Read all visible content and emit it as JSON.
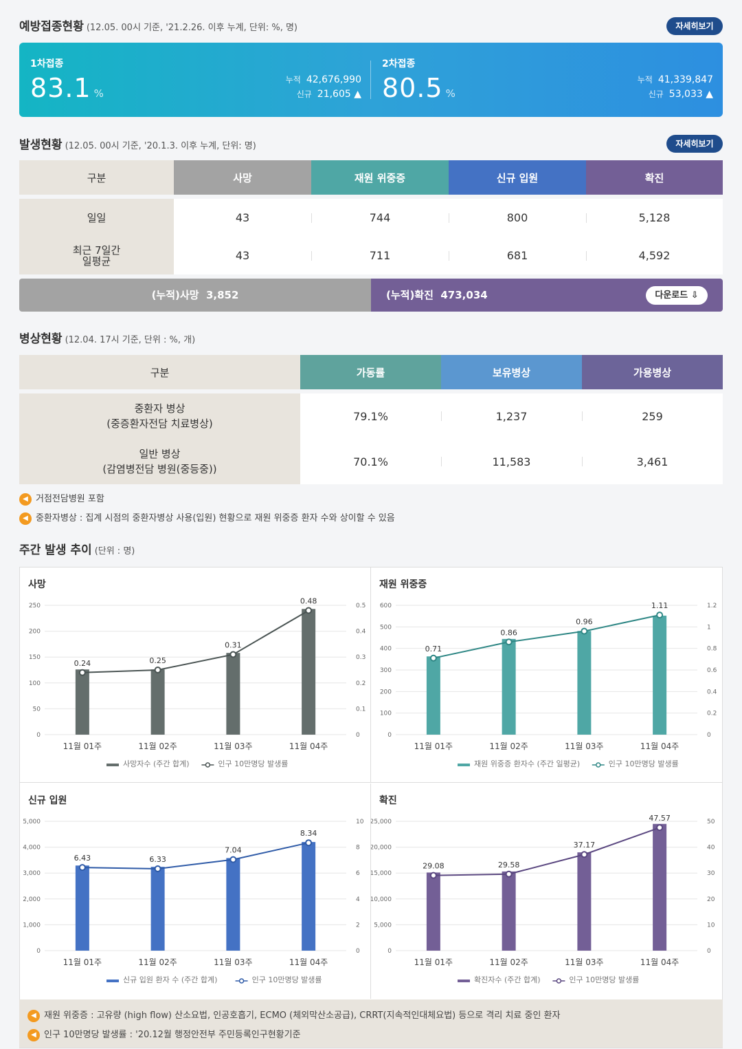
{
  "vaccination": {
    "title": "예방접종현황",
    "note": "(12.05. 00시 기준, '21.2.26. 이후 누계, 단위: %, 명)",
    "more": "자세히보기",
    "first": {
      "label": "1차접종",
      "rate": "83.1",
      "unit": "%",
      "cum_label": "누적",
      "cum": "42,676,990",
      "new_label": "신규",
      "new": "21,605 ▲"
    },
    "second": {
      "label": "2차접종",
      "rate": "80.5",
      "unit": "%",
      "cum_label": "누적",
      "cum": "41,339,847",
      "new_label": "신규",
      "new": "53,033 ▲"
    }
  },
  "occurrence": {
    "title": "발생현황",
    "note": "(12.05. 00시 기준, '20.1.3. 이후 누계, 단위: 명)",
    "more": "자세히보기",
    "headers": [
      "구분",
      "사망",
      "재원 위중증",
      "신규 입원",
      "확진"
    ],
    "rows": [
      {
        "label": "일일",
        "values": [
          "43",
          "744",
          "800",
          "5,128"
        ]
      },
      {
        "label": "최근 7일간\n일평균",
        "values": [
          "43",
          "711",
          "681",
          "4,592"
        ]
      }
    ],
    "cum_death_label": "(누적)사망",
    "cum_death": "3,852",
    "cum_conf_label": "(누적)확진",
    "cum_conf": "473,034",
    "download": "다운로드 ⇩"
  },
  "beds": {
    "title": "병상현황",
    "note": "(12.04. 17시 기준, 단위 : %, 개)",
    "headers": [
      "구분",
      "가동률",
      "보유병상",
      "가용병상"
    ],
    "rows": [
      {
        "label1": "중환자 병상",
        "label2": "(중증환자전담 치료병상)",
        "values": [
          "79.1%",
          "1,237",
          "259"
        ]
      },
      {
        "label1": "일반 병상",
        "label2": "(감염병전담 병원(중등중))",
        "values": [
          "70.1%",
          "11,583",
          "3,461"
        ]
      }
    ],
    "notes": [
      "거점전담병원 포함",
      "중환자병상 : 집계 시점의 중환자병상 사용(입원) 현황으로 재원 위중증 환자 수와 상이할 수 있음"
    ]
  },
  "weekly": {
    "title": "주간 발생 추이",
    "note": "(단위 : 명)",
    "footnotes": [
      "재원 위중증 : 고유량 (high flow) 산소요법, 인공호흡기, ECMO (체외막산소공급), CRRT(지속적인대체요법) 등으로 격리 치료 중인 환자",
      "인구 10만명당 발생률 : '20.12월 행정안전부 주민등록인구현황기준"
    ]
  },
  "chart_data": [
    {
      "type": "bar",
      "title": "사망",
      "categories": [
        "11월 01주",
        "11월 02주",
        "11월 03주",
        "11월 04주"
      ],
      "series": [
        {
          "name": "사망자수 (주간 합계)",
          "values": [
            126,
            126,
            158,
            243
          ],
          "color": "#646e6c"
        },
        {
          "name": "인구 10만명당 발생률",
          "values": [
            0.24,
            0.25,
            0.31,
            0.48
          ],
          "labels": [
            "0.24",
            "0.25",
            "0.31",
            "0.48"
          ],
          "color": "#4a5453"
        }
      ],
      "ylim": [
        0,
        250
      ],
      "yticks": [
        "0",
        "50",
        "100",
        "150",
        "200",
        "250"
      ],
      "y2lim": [
        0,
        0.5
      ],
      "y2ticks": [
        "0",
        "0.1",
        "0.2",
        "0.3",
        "0.4",
        "0.5"
      ]
    },
    {
      "type": "bar",
      "title": "재원 위중증",
      "categories": [
        "11월 01주",
        "11월 02주",
        "11월 03주",
        "11월 04주"
      ],
      "series": [
        {
          "name": "재원 위중증 환자수 (주간 일평균)",
          "values": [
            363,
            444,
            481,
            552
          ],
          "color": "#4fa7a5"
        },
        {
          "name": "인구 10만명당 발생률",
          "values": [
            0.71,
            0.86,
            0.96,
            1.11
          ],
          "labels": [
            "0.71",
            "0.86",
            "0.96",
            "1.11"
          ],
          "color": "#2f8785"
        }
      ],
      "ylim": [
        0,
        600
      ],
      "yticks": [
        "0",
        "100",
        "200",
        "300",
        "400",
        "500",
        "600"
      ],
      "y2lim": [
        0,
        1.2
      ],
      "y2ticks": [
        "0",
        "0.2",
        "0.4",
        "0.6",
        "0.8",
        "1",
        "1.2"
      ]
    },
    {
      "type": "bar",
      "title": "신규 입원",
      "categories": [
        "11월 01주",
        "11월 02주",
        "11월 03주",
        "11월 04주"
      ],
      "series": [
        {
          "name": "신규 입원 환자 수 (주간 합계)",
          "values": [
            3290,
            3240,
            3580,
            4200
          ],
          "color": "#4472c4"
        },
        {
          "name": "인구 10만명당 발생률",
          "values": [
            6.43,
            6.33,
            7.04,
            8.34
          ],
          "labels": [
            "6.43",
            "6.33",
            "7.04",
            "8.34"
          ],
          "color": "#2e5aa7"
        }
      ],
      "ylim": [
        0,
        5000
      ],
      "yticks": [
        "0",
        "1,000",
        "2,000",
        "3,000",
        "4,000",
        "5,000"
      ],
      "y2lim": [
        0,
        10
      ],
      "y2ticks": [
        "0",
        "2",
        "4",
        "6",
        "8",
        "10"
      ]
    },
    {
      "type": "bar",
      "title": "확진",
      "categories": [
        "11월 01주",
        "11월 02주",
        "11월 03주",
        "11월 04주"
      ],
      "series": [
        {
          "name": "확진자수 (주간 합계)",
          "values": [
            15100,
            15300,
            19000,
            24500
          ],
          "color": "#735f96"
        },
        {
          "name": "인구 10만명당 발생률",
          "values": [
            29.08,
            29.58,
            37.17,
            47.57
          ],
          "labels": [
            "29.08",
            "29.58",
            "37.17",
            "47.57"
          ],
          "color": "#5a4780"
        }
      ],
      "ylim": [
        0,
        25000
      ],
      "yticks": [
        "0",
        "5,000",
        "10,000",
        "15,000",
        "20,000",
        "25,000"
      ],
      "y2lim": [
        0,
        50
      ],
      "y2ticks": [
        "0",
        "10",
        "20",
        "30",
        "40",
        "50"
      ]
    }
  ]
}
